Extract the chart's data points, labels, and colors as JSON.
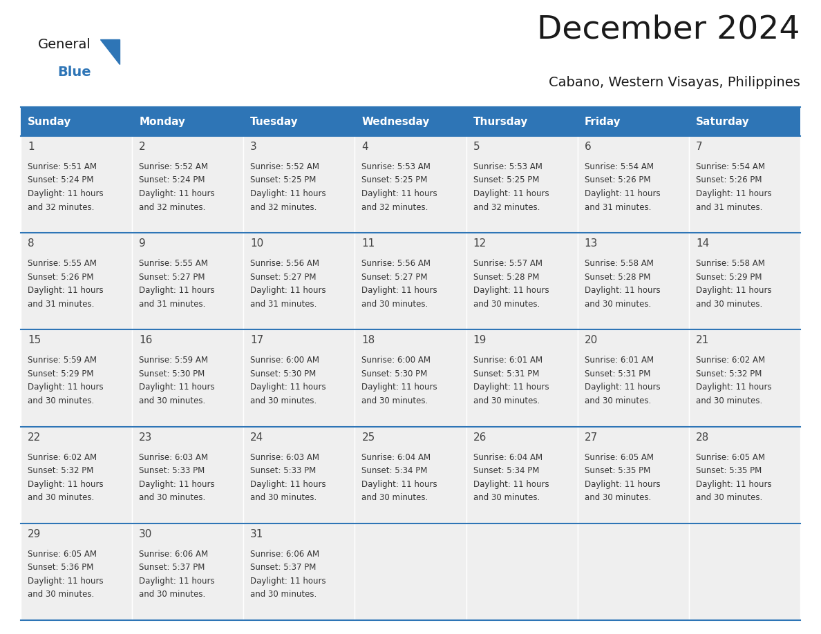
{
  "title": "December 2024",
  "subtitle": "Cabano, Western Visayas, Philippines",
  "header_color": "#2E75B6",
  "header_text_color": "#FFFFFF",
  "weekdays": [
    "Sunday",
    "Monday",
    "Tuesday",
    "Wednesday",
    "Thursday",
    "Friday",
    "Saturday"
  ],
  "days": [
    {
      "day": 1,
      "col": 0,
      "row": 0,
      "sunrise": "5:51 AM",
      "sunset": "5:24 PM",
      "daylight": "11 hours and 32 minutes."
    },
    {
      "day": 2,
      "col": 1,
      "row": 0,
      "sunrise": "5:52 AM",
      "sunset": "5:24 PM",
      "daylight": "11 hours and 32 minutes."
    },
    {
      "day": 3,
      "col": 2,
      "row": 0,
      "sunrise": "5:52 AM",
      "sunset": "5:25 PM",
      "daylight": "11 hours and 32 minutes."
    },
    {
      "day": 4,
      "col": 3,
      "row": 0,
      "sunrise": "5:53 AM",
      "sunset": "5:25 PM",
      "daylight": "11 hours and 32 minutes."
    },
    {
      "day": 5,
      "col": 4,
      "row": 0,
      "sunrise": "5:53 AM",
      "sunset": "5:25 PM",
      "daylight": "11 hours and 32 minutes."
    },
    {
      "day": 6,
      "col": 5,
      "row": 0,
      "sunrise": "5:54 AM",
      "sunset": "5:26 PM",
      "daylight": "11 hours and 31 minutes."
    },
    {
      "day": 7,
      "col": 6,
      "row": 0,
      "sunrise": "5:54 AM",
      "sunset": "5:26 PM",
      "daylight": "11 hours and 31 minutes."
    },
    {
      "day": 8,
      "col": 0,
      "row": 1,
      "sunrise": "5:55 AM",
      "sunset": "5:26 PM",
      "daylight": "11 hours and 31 minutes."
    },
    {
      "day": 9,
      "col": 1,
      "row": 1,
      "sunrise": "5:55 AM",
      "sunset": "5:27 PM",
      "daylight": "11 hours and 31 minutes."
    },
    {
      "day": 10,
      "col": 2,
      "row": 1,
      "sunrise": "5:56 AM",
      "sunset": "5:27 PM",
      "daylight": "11 hours and 31 minutes."
    },
    {
      "day": 11,
      "col": 3,
      "row": 1,
      "sunrise": "5:56 AM",
      "sunset": "5:27 PM",
      "daylight": "11 hours and 30 minutes."
    },
    {
      "day": 12,
      "col": 4,
      "row": 1,
      "sunrise": "5:57 AM",
      "sunset": "5:28 PM",
      "daylight": "11 hours and 30 minutes."
    },
    {
      "day": 13,
      "col": 5,
      "row": 1,
      "sunrise": "5:58 AM",
      "sunset": "5:28 PM",
      "daylight": "11 hours and 30 minutes."
    },
    {
      "day": 14,
      "col": 6,
      "row": 1,
      "sunrise": "5:58 AM",
      "sunset": "5:29 PM",
      "daylight": "11 hours and 30 minutes."
    },
    {
      "day": 15,
      "col": 0,
      "row": 2,
      "sunrise": "5:59 AM",
      "sunset": "5:29 PM",
      "daylight": "11 hours and 30 minutes."
    },
    {
      "day": 16,
      "col": 1,
      "row": 2,
      "sunrise": "5:59 AM",
      "sunset": "5:30 PM",
      "daylight": "11 hours and 30 minutes."
    },
    {
      "day": 17,
      "col": 2,
      "row": 2,
      "sunrise": "6:00 AM",
      "sunset": "5:30 PM",
      "daylight": "11 hours and 30 minutes."
    },
    {
      "day": 18,
      "col": 3,
      "row": 2,
      "sunrise": "6:00 AM",
      "sunset": "5:30 PM",
      "daylight": "11 hours and 30 minutes."
    },
    {
      "day": 19,
      "col": 4,
      "row": 2,
      "sunrise": "6:01 AM",
      "sunset": "5:31 PM",
      "daylight": "11 hours and 30 minutes."
    },
    {
      "day": 20,
      "col": 5,
      "row": 2,
      "sunrise": "6:01 AM",
      "sunset": "5:31 PM",
      "daylight": "11 hours and 30 minutes."
    },
    {
      "day": 21,
      "col": 6,
      "row": 2,
      "sunrise": "6:02 AM",
      "sunset": "5:32 PM",
      "daylight": "11 hours and 30 minutes."
    },
    {
      "day": 22,
      "col": 0,
      "row": 3,
      "sunrise": "6:02 AM",
      "sunset": "5:32 PM",
      "daylight": "11 hours and 30 minutes."
    },
    {
      "day": 23,
      "col": 1,
      "row": 3,
      "sunrise": "6:03 AM",
      "sunset": "5:33 PM",
      "daylight": "11 hours and 30 minutes."
    },
    {
      "day": 24,
      "col": 2,
      "row": 3,
      "sunrise": "6:03 AM",
      "sunset": "5:33 PM",
      "daylight": "11 hours and 30 minutes."
    },
    {
      "day": 25,
      "col": 3,
      "row": 3,
      "sunrise": "6:04 AM",
      "sunset": "5:34 PM",
      "daylight": "11 hours and 30 minutes."
    },
    {
      "day": 26,
      "col": 4,
      "row": 3,
      "sunrise": "6:04 AM",
      "sunset": "5:34 PM",
      "daylight": "11 hours and 30 minutes."
    },
    {
      "day": 27,
      "col": 5,
      "row": 3,
      "sunrise": "6:05 AM",
      "sunset": "5:35 PM",
      "daylight": "11 hours and 30 minutes."
    },
    {
      "day": 28,
      "col": 6,
      "row": 3,
      "sunrise": "6:05 AM",
      "sunset": "5:35 PM",
      "daylight": "11 hours and 30 minutes."
    },
    {
      "day": 29,
      "col": 0,
      "row": 4,
      "sunrise": "6:05 AM",
      "sunset": "5:36 PM",
      "daylight": "11 hours and 30 minutes."
    },
    {
      "day": 30,
      "col": 1,
      "row": 4,
      "sunrise": "6:06 AM",
      "sunset": "5:37 PM",
      "daylight": "11 hours and 30 minutes."
    },
    {
      "day": 31,
      "col": 2,
      "row": 4,
      "sunrise": "6:06 AM",
      "sunset": "5:37 PM",
      "daylight": "11 hours and 30 minutes."
    }
  ],
  "logo_text_general": "General",
  "logo_text_blue": "Blue",
  "bg_color": "#FFFFFF",
  "cell_bg_color": "#EFEFEF",
  "divider_color": "#2E75B6",
  "text_color": "#1a1a1a",
  "cell_text_color": "#333333",
  "header_font_size": 11,
  "day_num_font_size": 11,
  "cell_font_size": 8.5,
  "title_font_size": 34,
  "subtitle_font_size": 14,
  "logo_font_size": 14
}
